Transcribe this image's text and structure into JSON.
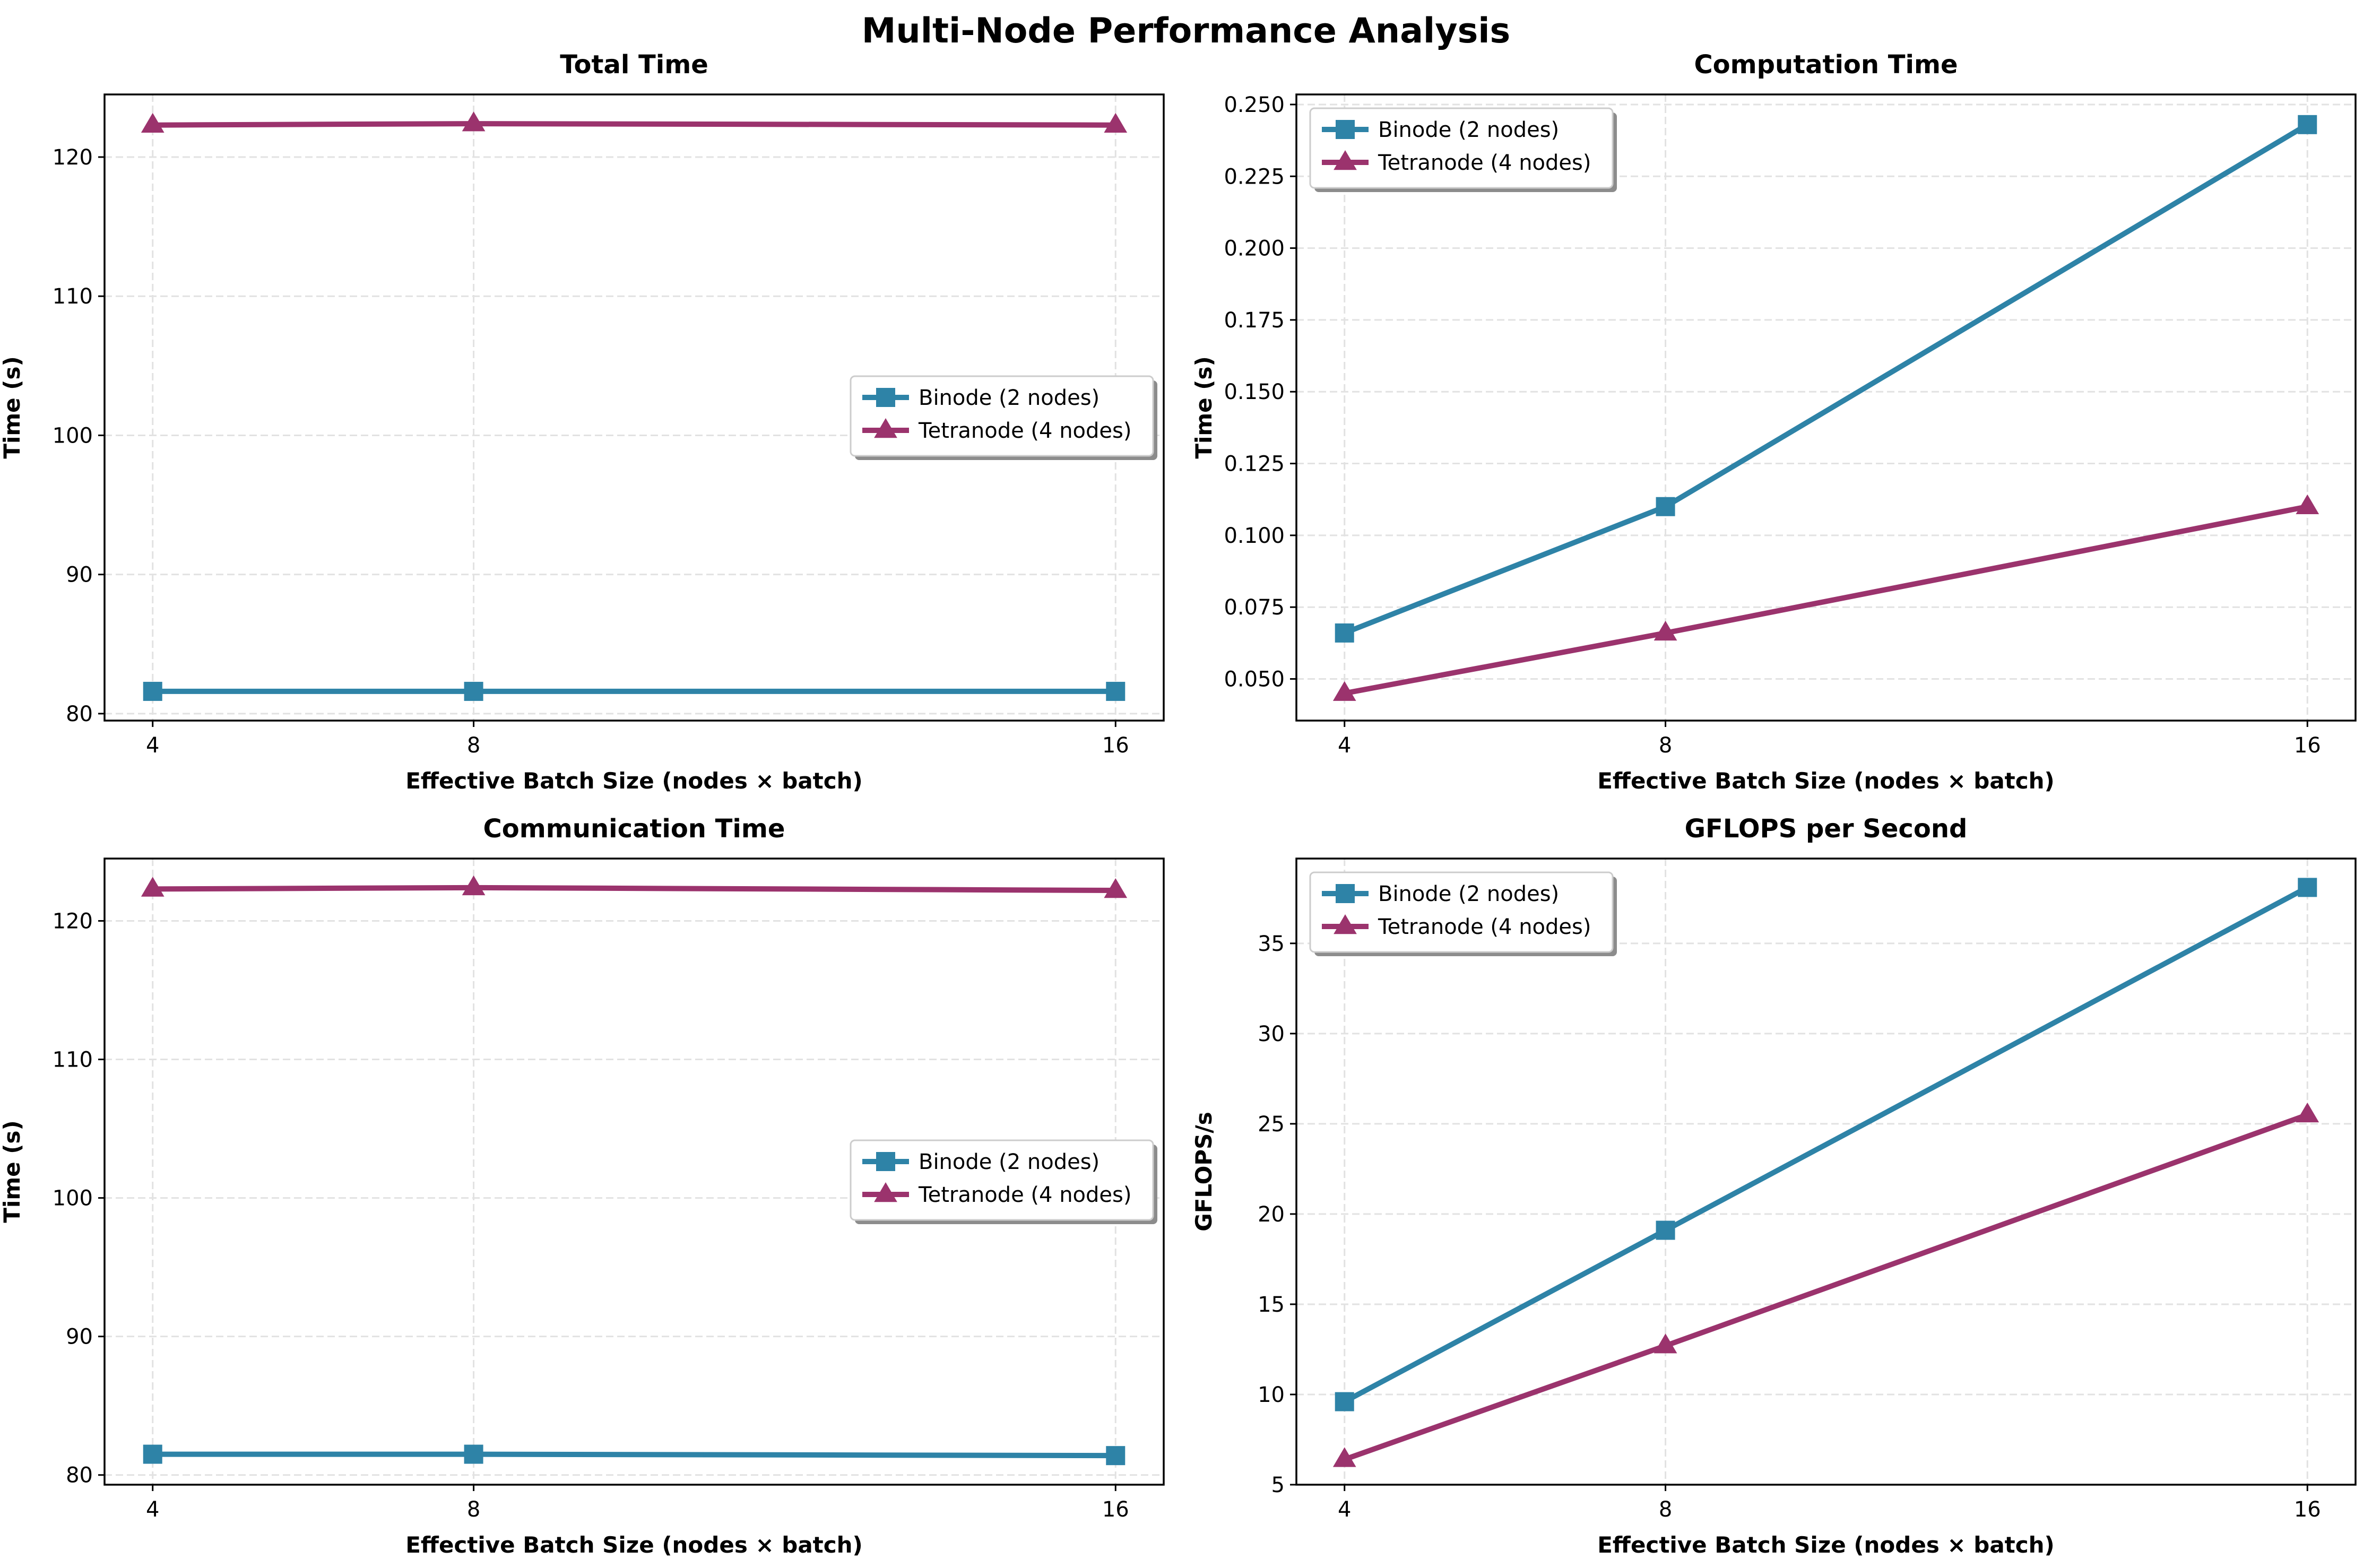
{
  "figure": {
    "suptitle": "Multi-Node Performance Analysis"
  },
  "colors": {
    "binode": "#2e83a7",
    "tetranode": "#9b336d",
    "grid": "#e2e2e2",
    "axis": "#000000"
  },
  "chart_data": [
    {
      "type": "line",
      "title": "Total Time",
      "xlabel": "Effective Batch Size (nodes × batch)",
      "ylabel": "Time (s)",
      "x": [
        4,
        8,
        16
      ],
      "xticks": [
        "4",
        "8",
        "16"
      ],
      "xlim": [
        3.4,
        16.6
      ],
      "ylim": [
        79.5,
        124.5
      ],
      "yticks": [
        80,
        90,
        100,
        110,
        120
      ],
      "ytick_labels": [
        "80",
        "90",
        "100",
        "110",
        "120"
      ],
      "grid": true,
      "legend_position": "center-right",
      "series": [
        {
          "name": "Binode (2 nodes)",
          "marker": "square",
          "color": "#2e83a7",
          "values": [
            81.6,
            81.6,
            81.6
          ]
        },
        {
          "name": "Tetranode (4 nodes)",
          "marker": "triangle",
          "color": "#9b336d",
          "values": [
            122.3,
            122.4,
            122.3
          ]
        }
      ]
    },
    {
      "type": "line",
      "title": "Computation Time",
      "xlabel": "Effective Batch Size (nodes × batch)",
      "ylabel": "Time (s)",
      "x": [
        4,
        8,
        16
      ],
      "xticks": [
        "4",
        "8",
        "16"
      ],
      "xlim": [
        3.4,
        16.6
      ],
      "ylim": [
        0.0355,
        0.2535
      ],
      "yticks": [
        0.05,
        0.075,
        0.1,
        0.125,
        0.15,
        0.175,
        0.2,
        0.225,
        0.25
      ],
      "ytick_labels": [
        "0.050",
        "0.075",
        "0.100",
        "0.125",
        "0.150",
        "0.175",
        "0.200",
        "0.225",
        "0.250"
      ],
      "grid": true,
      "legend_position": "upper-left",
      "series": [
        {
          "name": "Binode (2 nodes)",
          "marker": "square",
          "color": "#2e83a7",
          "values": [
            0.066,
            0.11,
            0.243
          ]
        },
        {
          "name": "Tetranode (4 nodes)",
          "marker": "triangle",
          "color": "#9b336d",
          "values": [
            0.045,
            0.066,
            0.11
          ]
        }
      ]
    },
    {
      "type": "line",
      "title": "Communication Time",
      "xlabel": "Effective Batch Size (nodes × batch)",
      "ylabel": "Time (s)",
      "x": [
        4,
        8,
        16
      ],
      "xticks": [
        "4",
        "8",
        "16"
      ],
      "xlim": [
        3.4,
        16.6
      ],
      "ylim": [
        79.3,
        124.5
      ],
      "yticks": [
        80,
        90,
        100,
        110,
        120
      ],
      "ytick_labels": [
        "80",
        "90",
        "100",
        "110",
        "120"
      ],
      "grid": true,
      "legend_position": "center-right",
      "series": [
        {
          "name": "Binode (2 nodes)",
          "marker": "square",
          "color": "#2e83a7",
          "values": [
            81.5,
            81.5,
            81.4
          ]
        },
        {
          "name": "Tetranode (4 nodes)",
          "marker": "triangle",
          "color": "#9b336d",
          "values": [
            122.3,
            122.4,
            122.2
          ]
        }
      ]
    },
    {
      "type": "line",
      "title": "GFLOPS per Second",
      "xlabel": "Effective Batch Size (nodes × batch)",
      "ylabel": "GFLOPS/s",
      "x": [
        4,
        8,
        16
      ],
      "xticks": [
        "4",
        "8",
        "16"
      ],
      "xlim": [
        3.4,
        16.6
      ],
      "ylim": [
        5.0,
        39.7
      ],
      "yticks": [
        5,
        10,
        15,
        20,
        25,
        30,
        35
      ],
      "ytick_labels": [
        "5",
        "10",
        "15",
        "20",
        "25",
        "30",
        "35"
      ],
      "grid": true,
      "legend_position": "upper-left",
      "series": [
        {
          "name": "Binode (2 nodes)",
          "marker": "square",
          "color": "#2e83a7",
          "values": [
            9.6,
            19.1,
            38.1
          ]
        },
        {
          "name": "Tetranode (4 nodes)",
          "marker": "triangle",
          "color": "#9b336d",
          "values": [
            6.4,
            12.7,
            25.5
          ]
        }
      ]
    }
  ]
}
